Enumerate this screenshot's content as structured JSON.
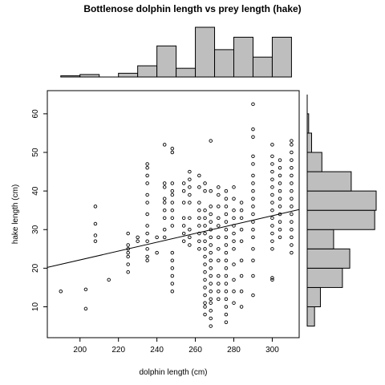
{
  "chart_data": {
    "type": "scatter",
    "title": "Bottlenose dolphin length vs prey length (hake)",
    "xlabel": "dolphin length (cm)",
    "ylabel": "hake length (cm)",
    "xlim": [
      183,
      314
    ],
    "ylim": [
      2,
      66
    ],
    "xticks": [
      200,
      220,
      240,
      260,
      280,
      300
    ],
    "yticks": [
      10,
      20,
      30,
      40,
      50,
      60
    ],
    "grid": false,
    "regression_line": {
      "x": [
        183,
        314
      ],
      "y": [
        20.2,
        35.2
      ]
    },
    "columns": [
      {
        "x": 190,
        "y": [
          14
        ]
      },
      {
        "x": 203,
        "y": [
          9.5,
          14.5
        ]
      },
      {
        "x": 208,
        "y": [
          27,
          28.5,
          31.5,
          36
        ]
      },
      {
        "x": 215,
        "y": [
          17
        ]
      },
      {
        "x": 225,
        "y": [
          19,
          21,
          23,
          24,
          25,
          26,
          29
        ]
      },
      {
        "x": 230,
        "y": [
          27,
          28
        ]
      },
      {
        "x": 235,
        "y": [
          22,
          23,
          25,
          27,
          29,
          31,
          34,
          37,
          39,
          42,
          44,
          46,
          47
        ]
      },
      {
        "x": 240,
        "y": [
          24,
          28
        ]
      },
      {
        "x": 244,
        "y": [
          28,
          30,
          33,
          35,
          37,
          38,
          41,
          42,
          52
        ]
      },
      {
        "x": 248,
        "y": [
          14,
          16,
          18,
          20,
          22,
          24,
          31,
          33,
          35,
          37,
          39,
          40,
          42,
          50,
          51
        ]
      },
      {
        "x": 254,
        "y": [
          27,
          29,
          31,
          33,
          37,
          40,
          42
        ]
      },
      {
        "x": 257,
        "y": [
          26,
          28,
          30,
          33,
          37,
          39,
          41,
          43,
          45
        ]
      },
      {
        "x": 262,
        "y": [
          25,
          27,
          29,
          31,
          33,
          35,
          37,
          41,
          44
        ]
      },
      {
        "x": 265,
        "y": [
          8,
          10,
          11,
          13,
          15,
          17,
          19,
          21,
          23,
          25,
          27,
          29,
          31,
          33,
          35,
          40,
          42
        ]
      },
      {
        "x": 268,
        "y": [
          5,
          7,
          9,
          11,
          12,
          14,
          16,
          18,
          20,
          22,
          24,
          26,
          28,
          30,
          32,
          34,
          36,
          40,
          53
        ]
      },
      {
        "x": 272,
        "y": [
          12,
          14,
          16,
          18,
          22,
          25,
          28,
          31,
          33,
          36,
          39,
          41
        ]
      },
      {
        "x": 276,
        "y": [
          6,
          8,
          10,
          12,
          14,
          16,
          18,
          20,
          22,
          24,
          26,
          28,
          30,
          32,
          34,
          36,
          38,
          40
        ]
      },
      {
        "x": 280,
        "y": [
          11,
          14,
          17,
          21,
          25,
          27,
          29,
          31,
          33,
          35,
          38,
          41
        ]
      },
      {
        "x": 284,
        "y": [
          10,
          14,
          18,
          22,
          27,
          30,
          33,
          35,
          37
        ]
      },
      {
        "x": 290,
        "y": [
          13,
          18,
          22,
          25,
          28,
          30,
          32,
          34,
          36,
          38,
          40,
          42,
          44,
          47,
          49,
          54,
          56,
          62.5
        ]
      },
      {
        "x": 300,
        "y": [
          17,
          17.5,
          25,
          27,
          29,
          31,
          33,
          35,
          37,
          39,
          41,
          43,
          45,
          47,
          49,
          52
        ]
      },
      {
        "x": 304,
        "y": [
          28,
          30,
          32,
          34,
          36,
          38,
          40,
          42,
          44,
          46,
          48
        ]
      },
      {
        "x": 310,
        "y": [
          24,
          26,
          28,
          30,
          32,
          34,
          36,
          38,
          40,
          42,
          44,
          46,
          48,
          50,
          52,
          53
        ]
      }
    ],
    "histogram_x": {
      "bins": [
        [
          190,
          200
        ],
        [
          200,
          210
        ],
        [
          210,
          220
        ],
        [
          220,
          230
        ],
        [
          230,
          240
        ],
        [
          240,
          250
        ],
        [
          250,
          260
        ],
        [
          260,
          270
        ],
        [
          270,
          280
        ],
        [
          280,
          290
        ],
        [
          290,
          300
        ],
        [
          300,
          310
        ]
      ],
      "counts": [
        1,
        2,
        0,
        3,
        9,
        25,
        7,
        40,
        22,
        32,
        16,
        32
      ]
    },
    "histogram_y": {
      "bins": [
        [
          5,
          10
        ],
        [
          10,
          15
        ],
        [
          15,
          20
        ],
        [
          20,
          25
        ],
        [
          25,
          30
        ],
        [
          30,
          35
        ],
        [
          35,
          40
        ],
        [
          40,
          45
        ],
        [
          45,
          50
        ],
        [
          50,
          55
        ],
        [
          55,
          60
        ],
        [
          60,
          65
        ]
      ],
      "counts": [
        5,
        9,
        24,
        29,
        18,
        46,
        47,
        30,
        10,
        3,
        1,
        0
      ]
    }
  }
}
